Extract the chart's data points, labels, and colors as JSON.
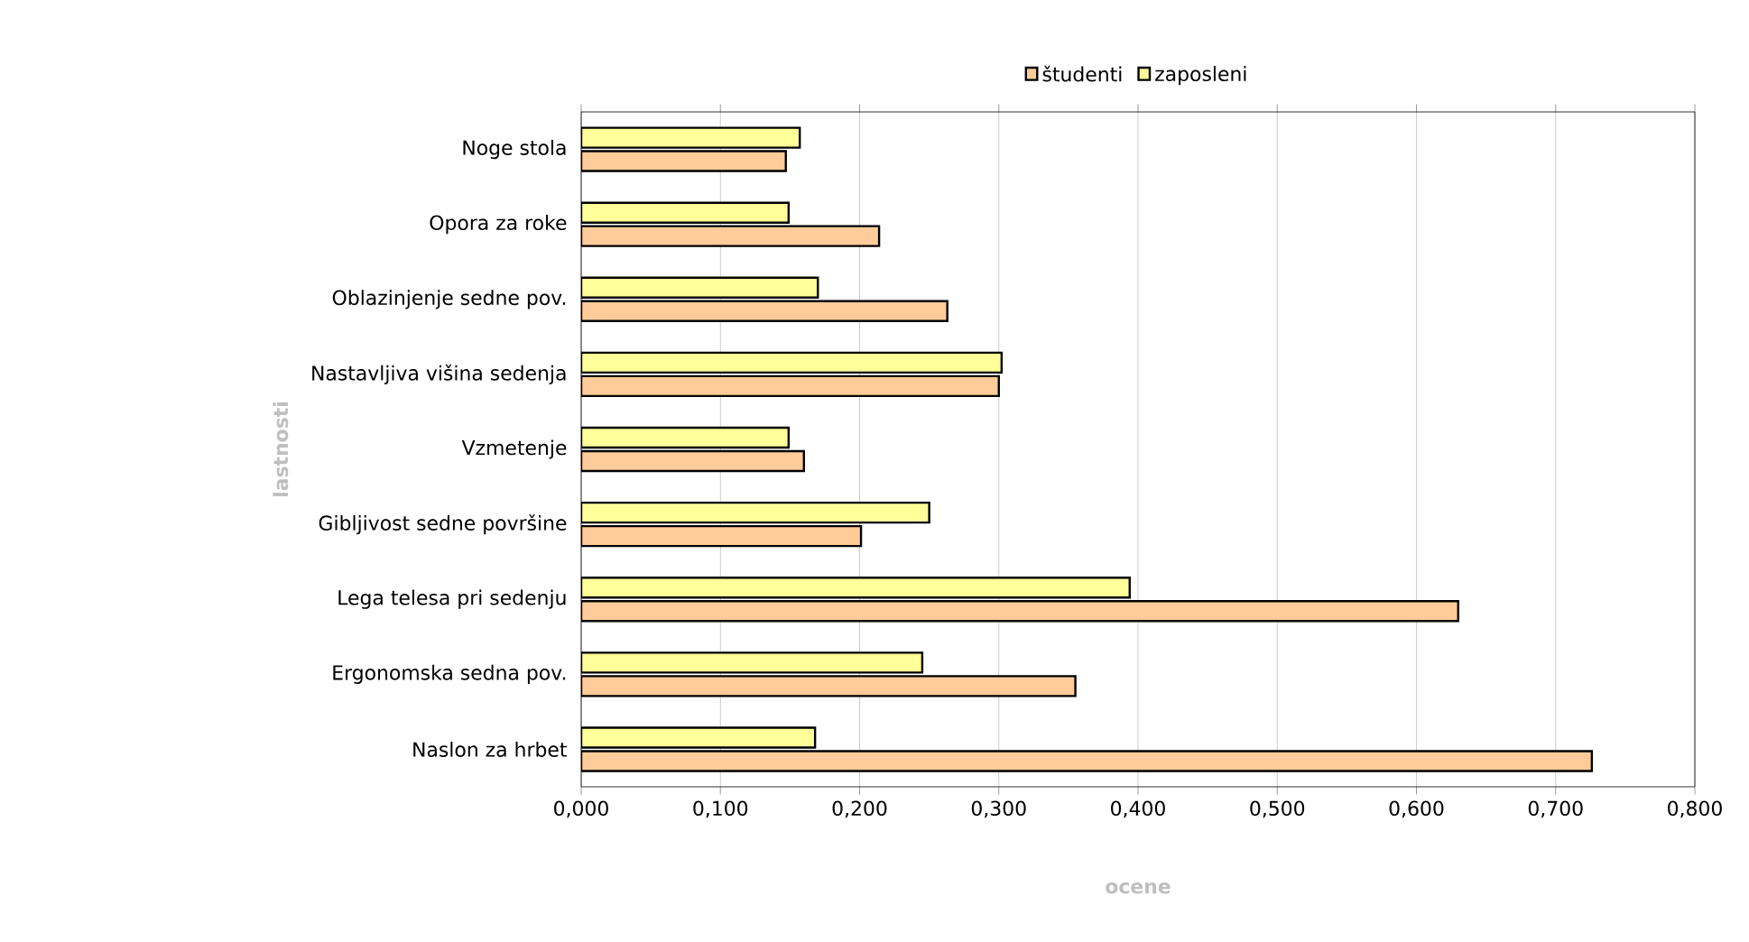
{
  "chart_data": {
    "type": "bar",
    "orientation": "horizontal",
    "xlabel": "ocene",
    "ylabel": "lastnosti",
    "categories": [
      "Noge stola",
      "Opora za roke",
      "Oblazinjenje sedne pov.",
      "Nastavljiva višina sedenja",
      "Vzmetenje",
      "Gibljivost sedne površine",
      "Lega telesa pri sedenju",
      "Ergonomska sedna pov.",
      "Naslon za hrbet"
    ],
    "series": [
      {
        "name": "študenti",
        "color": "#ffcc99",
        "values": [
          0.147,
          0.214,
          0.263,
          0.3,
          0.16,
          0.201,
          0.63,
          0.355,
          0.726
        ]
      },
      {
        "name": "zaposleni",
        "color": "#ffff99",
        "values": [
          0.157,
          0.149,
          0.17,
          0.302,
          0.149,
          0.25,
          0.394,
          0.245,
          0.168
        ]
      }
    ],
    "xlim": [
      0,
      0.8
    ],
    "xticks": [
      {
        "value": 0,
        "label": "0,000"
      },
      {
        "value": 0.1,
        "label": "0,100"
      },
      {
        "value": 0.2,
        "label": "0,200"
      },
      {
        "value": 0.3,
        "label": "0,300"
      },
      {
        "value": 0.4,
        "label": "0,400"
      },
      {
        "value": 0.5,
        "label": "0,500"
      },
      {
        "value": 0.6,
        "label": "0,600"
      },
      {
        "value": 0.7,
        "label": "0,700"
      },
      {
        "value": 0.8,
        "label": "0,800"
      }
    ],
    "grid": "x",
    "legend": "top"
  }
}
